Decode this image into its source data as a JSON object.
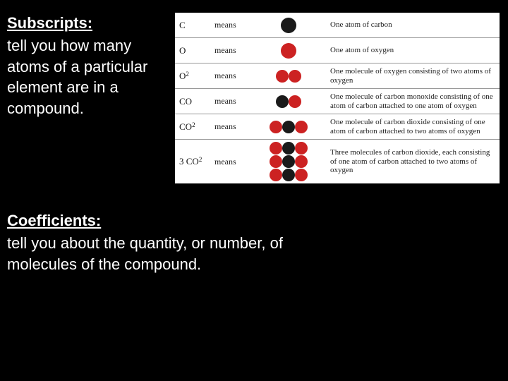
{
  "colors": {
    "page_bg": "#000000",
    "text_white": "#ffffff",
    "table_bg": "#ffffff",
    "border": "#999999",
    "carbon": "#1a1a1a",
    "oxygen": "#cc2222"
  },
  "subscripts": {
    "heading": "Subscripts:",
    "body": "tell you how many atoms of a particular element  are in a compound."
  },
  "coefficients": {
    "heading": "Coefficients:",
    "body": "tell you about the quantity, or number, of molecules of the compound."
  },
  "means_label": "means",
  "rows": [
    {
      "formula_html": "C",
      "atoms": [
        [
          {
            "el": "C",
            "big": true
          }
        ]
      ],
      "desc": "One atom of carbon"
    },
    {
      "formula_html": "O",
      "atoms": [
        [
          {
            "el": "O",
            "big": true
          }
        ]
      ],
      "desc": "One atom of oxygen"
    },
    {
      "formula_html": "O<span class='sub'>2</span>",
      "atoms": [
        [
          {
            "el": "O"
          },
          {
            "el": "O"
          }
        ]
      ],
      "desc": "One molecule of oxygen consisting of two atoms of oxygen"
    },
    {
      "formula_html": "CO",
      "atoms": [
        [
          {
            "el": "C"
          },
          {
            "el": "O"
          }
        ]
      ],
      "desc": "One molecule of carbon monoxide consisting of one atom of carbon attached to one atom of oxygen"
    },
    {
      "formula_html": "CO<span class='sub'>2</span>",
      "atoms": [
        [
          {
            "el": "O"
          },
          {
            "el": "C"
          },
          {
            "el": "O"
          }
        ]
      ],
      "desc": "One molecule of carbon dioxide consisting of one atom of carbon attached to two atoms of oxygen"
    },
    {
      "formula_html": "3 CO<span class='sub'>2</span>",
      "atoms": [
        [
          {
            "el": "O"
          },
          {
            "el": "C"
          },
          {
            "el": "O"
          }
        ],
        [
          {
            "el": "O"
          },
          {
            "el": "C"
          },
          {
            "el": "O"
          }
        ],
        [
          {
            "el": "O"
          },
          {
            "el": "C"
          },
          {
            "el": "O"
          }
        ]
      ],
      "desc": "Three molecules of carbon dioxide, each consisting of one atom of carbon attached to two atoms of oxygen"
    }
  ]
}
